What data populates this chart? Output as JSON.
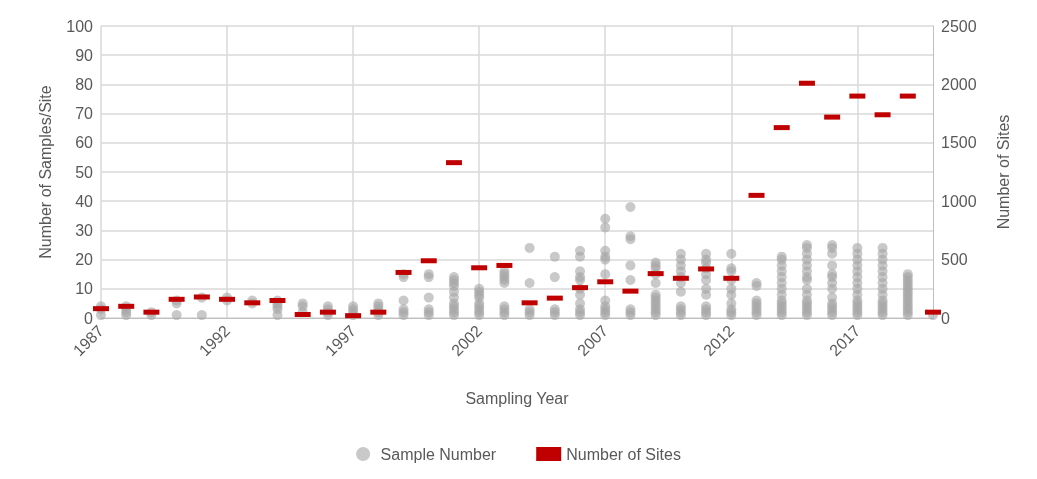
{
  "chart_data": {
    "type": "scatter",
    "xlabel": "Sampling Year",
    "ylabel": "Number of Samples/Site",
    "y2label": "Number of Sites",
    "xlim": [
      1987,
      2020
    ],
    "xticks": [
      1987,
      1992,
      1997,
      2002,
      2007,
      2012,
      2017
    ],
    "ylim": [
      0,
      100
    ],
    "yticks": [
      0,
      10,
      20,
      30,
      40,
      50,
      60,
      70,
      80,
      90,
      100
    ],
    "y2lim": [
      0,
      2500
    ],
    "y2ticks": [
      0,
      500,
      1000,
      1500,
      2000,
      2500
    ],
    "grid": true,
    "legend": "bottom",
    "marker": "circle",
    "series": [
      {
        "name": "Sample Number",
        "color": "#a5a5a5",
        "x": [
          1987,
          1987,
          1987,
          1988,
          1988,
          1988,
          1988,
          1989,
          1989,
          1990,
          1990,
          1990,
          1991,
          1991,
          1992,
          1992,
          1993,
          1993,
          1994,
          1994,
          1994,
          1994,
          1994,
          1995,
          1995,
          1995,
          1996,
          1996,
          1996,
          1996,
          1997,
          1997,
          1997,
          1997,
          1998,
          1998,
          1998,
          1998,
          1998,
          1999,
          1999,
          1999,
          1999,
          1999,
          1999,
          2000,
          2000,
          2000,
          2000,
          2000,
          2000,
          2001,
          2001,
          2001,
          2001,
          2001,
          2001,
          2001,
          2001,
          2001,
          2001,
          2001,
          2002,
          2002,
          2002,
          2002,
          2002,
          2002,
          2002,
          2002,
          2002,
          2003,
          2003,
          2003,
          2003,
          2003,
          2003,
          2003,
          2003,
          2003,
          2004,
          2004,
          2004,
          2004,
          2004,
          2005,
          2005,
          2005,
          2005,
          2005,
          2006,
          2006,
          2006,
          2006,
          2006,
          2006,
          2006,
          2006,
          2006,
          2006,
          2006,
          2007,
          2007,
          2007,
          2007,
          2007,
          2007,
          2007,
          2007,
          2007,
          2007,
          2007,
          2008,
          2008,
          2008,
          2008,
          2008,
          2008,
          2008,
          2008,
          2009,
          2009,
          2009,
          2009,
          2009,
          2009,
          2009,
          2009,
          2009,
          2009,
          2009,
          2009,
          2009,
          2010,
          2010,
          2010,
          2010,
          2010,
          2010,
          2010,
          2010,
          2010,
          2010,
          2010,
          2011,
          2011,
          2011,
          2011,
          2011,
          2011,
          2011,
          2011,
          2011,
          2011,
          2011,
          2011,
          2012,
          2012,
          2012,
          2012,
          2012,
          2012,
          2012,
          2012,
          2012,
          2012,
          2013,
          2013,
          2013,
          2013,
          2013,
          2013,
          2013,
          2013,
          2014,
          2014,
          2014,
          2014,
          2014,
          2014,
          2014,
          2014,
          2014,
          2014,
          2014,
          2014,
          2014,
          2014,
          2015,
          2015,
          2015,
          2015,
          2015,
          2015,
          2015,
          2015,
          2015,
          2015,
          2015,
          2015,
          2015,
          2015,
          2015,
          2015,
          2016,
          2016,
          2016,
          2016,
          2016,
          2016,
          2016,
          2016,
          2016,
          2016,
          2016,
          2016,
          2016,
          2016,
          2017,
          2017,
          2017,
          2017,
          2017,
          2017,
          2017,
          2017,
          2017,
          2017,
          2017,
          2017,
          2017,
          2017,
          2017,
          2018,
          2018,
          2018,
          2018,
          2018,
          2018,
          2018,
          2018,
          2018,
          2018,
          2018,
          2018,
          2018,
          2018,
          2018,
          2019,
          2019,
          2019,
          2019,
          2019,
          2019,
          2019,
          2019,
          2019,
          2019,
          2019,
          2019,
          2019,
          2019,
          2019,
          2020
        ],
        "values": [
          1,
          3,
          4,
          1,
          2,
          3,
          4,
          1,
          2,
          1,
          5,
          6,
          1,
          7,
          6,
          7,
          5,
          6,
          1,
          3,
          4,
          5,
          6,
          2,
          4,
          5,
          1,
          2,
          3,
          4,
          1,
          2,
          3,
          4,
          1,
          2,
          3,
          4,
          5,
          1,
          2,
          3,
          6,
          14,
          15,
          1,
          2,
          3,
          7,
          14,
          15,
          1,
          2,
          3,
          4,
          5,
          7,
          9,
          11,
          12,
          13,
          14,
          1,
          2,
          3,
          4,
          5,
          7,
          8,
          9,
          10,
          1,
          2,
          3,
          4,
          12,
          13,
          14,
          15,
          16,
          1,
          2,
          3,
          12,
          24,
          1,
          2,
          3,
          14,
          21,
          1,
          2,
          3,
          5,
          8,
          10,
          13,
          14,
          16,
          21,
          23,
          1,
          2,
          3,
          4,
          6,
          15,
          20,
          21,
          23,
          31,
          34,
          1,
          2,
          3,
          13,
          18,
          27,
          28,
          38,
          1,
          2,
          3,
          4,
          5,
          6,
          7,
          8,
          12,
          15,
          17,
          18,
          19,
          1,
          2,
          3,
          4,
          9,
          12,
          14,
          16,
          18,
          20,
          22,
          1,
          2,
          3,
          4,
          8,
          10,
          13,
          15,
          17,
          19,
          20,
          22,
          1,
          2,
          3,
          5,
          8,
          10,
          13,
          16,
          17,
          22,
          1,
          2,
          3,
          4,
          5,
          6,
          11,
          12,
          1,
          2,
          3,
          4,
          5,
          6,
          8,
          10,
          12,
          14,
          16,
          18,
          20,
          21,
          1,
          2,
          3,
          4,
          5,
          6,
          8,
          10,
          13,
          14,
          16,
          18,
          20,
          22,
          24,
          25,
          1,
          2,
          3,
          4,
          5,
          7,
          10,
          12,
          14,
          15,
          18,
          22,
          24,
          25,
          1,
          2,
          3,
          4,
          5,
          6,
          8,
          10,
          12,
          14,
          16,
          18,
          20,
          22,
          24,
          1,
          2,
          3,
          4,
          5,
          6,
          8,
          10,
          12,
          14,
          16,
          18,
          20,
          22,
          24,
          1,
          2,
          3,
          4,
          5,
          6,
          7,
          8,
          9,
          10,
          11,
          12,
          13,
          14,
          15,
          1
        ]
      },
      {
        "name": "Number of Sites",
        "color": "#c00000",
        "axis": "y2",
        "marker": "square",
        "x": [
          1987,
          1988,
          1989,
          1990,
          1991,
          1992,
          1993,
          1994,
          1995,
          1996,
          1997,
          1998,
          1999,
          2000,
          2001,
          2002,
          2003,
          2004,
          2005,
          2006,
          2007,
          2008,
          2009,
          2010,
          2011,
          2012,
          2013,
          2014,
          2015,
          2016,
          2017,
          2018,
          2019,
          2020
        ],
        "values": [
          80,
          100,
          50,
          160,
          180,
          160,
          130,
          150,
          30,
          50,
          20,
          50,
          390,
          490,
          1330,
          430,
          450,
          130,
          170,
          260,
          310,
          230,
          380,
          340,
          420,
          340,
          1050,
          1630,
          2010,
          1720,
          1900,
          1740,
          1900,
          50
        ]
      }
    ]
  }
}
